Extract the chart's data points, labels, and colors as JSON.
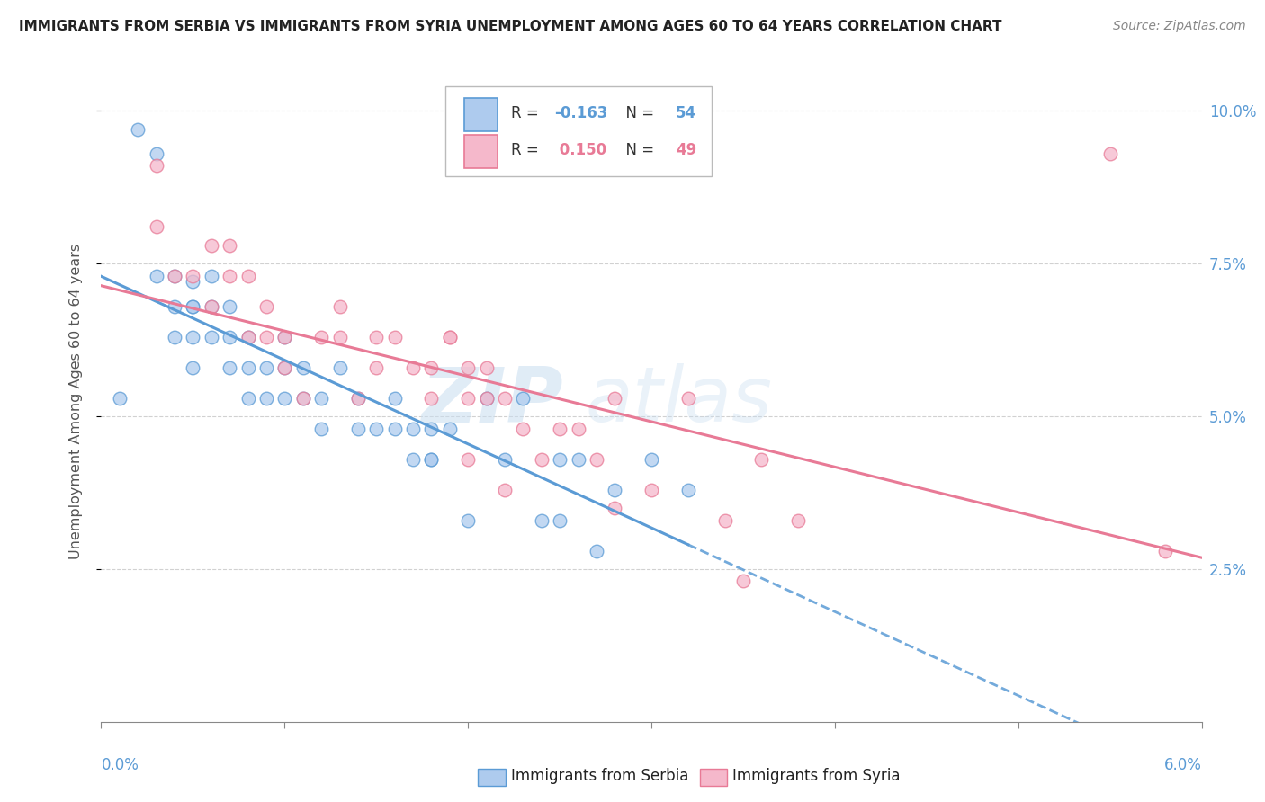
{
  "title": "IMMIGRANTS FROM SERBIA VS IMMIGRANTS FROM SYRIA UNEMPLOYMENT AMONG AGES 60 TO 64 YEARS CORRELATION CHART",
  "source": "Source: ZipAtlas.com",
  "ylabel": "Unemployment Among Ages 60 to 64 years",
  "xmin": 0.0,
  "xmax": 0.06,
  "ymin": 0.0,
  "ymax": 0.105,
  "yticks": [
    0.025,
    0.05,
    0.075,
    0.1
  ],
  "ytick_labels": [
    "2.5%",
    "5.0%",
    "7.5%",
    "10.0%"
  ],
  "serbia_R": -0.163,
  "serbia_N": 54,
  "syria_R": 0.15,
  "syria_N": 49,
  "serbia_color": "#aecbee",
  "syria_color": "#f5b8cb",
  "serbia_line_color": "#5b9bd5",
  "syria_line_color": "#e87a96",
  "watermark_zip": "ZIP",
  "watermark_atlas": "atlas",
  "serbia_scatter_x": [
    0.002,
    0.003,
    0.003,
    0.004,
    0.004,
    0.004,
    0.005,
    0.005,
    0.005,
    0.005,
    0.005,
    0.006,
    0.006,
    0.006,
    0.007,
    0.007,
    0.007,
    0.008,
    0.008,
    0.008,
    0.009,
    0.009,
    0.01,
    0.01,
    0.01,
    0.011,
    0.011,
    0.012,
    0.012,
    0.013,
    0.014,
    0.014,
    0.015,
    0.016,
    0.016,
    0.017,
    0.017,
    0.018,
    0.018,
    0.018,
    0.019,
    0.02,
    0.021,
    0.022,
    0.023,
    0.024,
    0.025,
    0.025,
    0.026,
    0.027,
    0.028,
    0.03,
    0.032,
    0.001
  ],
  "serbia_scatter_y": [
    0.097,
    0.093,
    0.073,
    0.068,
    0.073,
    0.063,
    0.068,
    0.063,
    0.058,
    0.072,
    0.068,
    0.063,
    0.068,
    0.073,
    0.058,
    0.068,
    0.063,
    0.058,
    0.053,
    0.063,
    0.058,
    0.053,
    0.063,
    0.058,
    0.053,
    0.058,
    0.053,
    0.053,
    0.048,
    0.058,
    0.048,
    0.053,
    0.048,
    0.053,
    0.048,
    0.048,
    0.043,
    0.048,
    0.043,
    0.043,
    0.048,
    0.033,
    0.053,
    0.043,
    0.053,
    0.033,
    0.043,
    0.033,
    0.043,
    0.028,
    0.038,
    0.043,
    0.038,
    0.053
  ],
  "syria_scatter_x": [
    0.003,
    0.003,
    0.004,
    0.005,
    0.006,
    0.006,
    0.007,
    0.007,
    0.008,
    0.008,
    0.009,
    0.009,
    0.01,
    0.01,
    0.011,
    0.012,
    0.013,
    0.013,
    0.014,
    0.015,
    0.015,
    0.016,
    0.017,
    0.018,
    0.018,
    0.019,
    0.019,
    0.02,
    0.02,
    0.021,
    0.021,
    0.022,
    0.023,
    0.024,
    0.025,
    0.026,
    0.027,
    0.028,
    0.03,
    0.032,
    0.034,
    0.036,
    0.038,
    0.055,
    0.058,
    0.02,
    0.022,
    0.028,
    0.035
  ],
  "syria_scatter_y": [
    0.091,
    0.081,
    0.073,
    0.073,
    0.078,
    0.068,
    0.078,
    0.073,
    0.073,
    0.063,
    0.068,
    0.063,
    0.063,
    0.058,
    0.053,
    0.063,
    0.063,
    0.068,
    0.053,
    0.063,
    0.058,
    0.063,
    0.058,
    0.053,
    0.058,
    0.063,
    0.063,
    0.053,
    0.058,
    0.053,
    0.058,
    0.053,
    0.048,
    0.043,
    0.048,
    0.048,
    0.043,
    0.053,
    0.038,
    0.053,
    0.033,
    0.043,
    0.033,
    0.093,
    0.028,
    0.043,
    0.038,
    0.035,
    0.023
  ]
}
